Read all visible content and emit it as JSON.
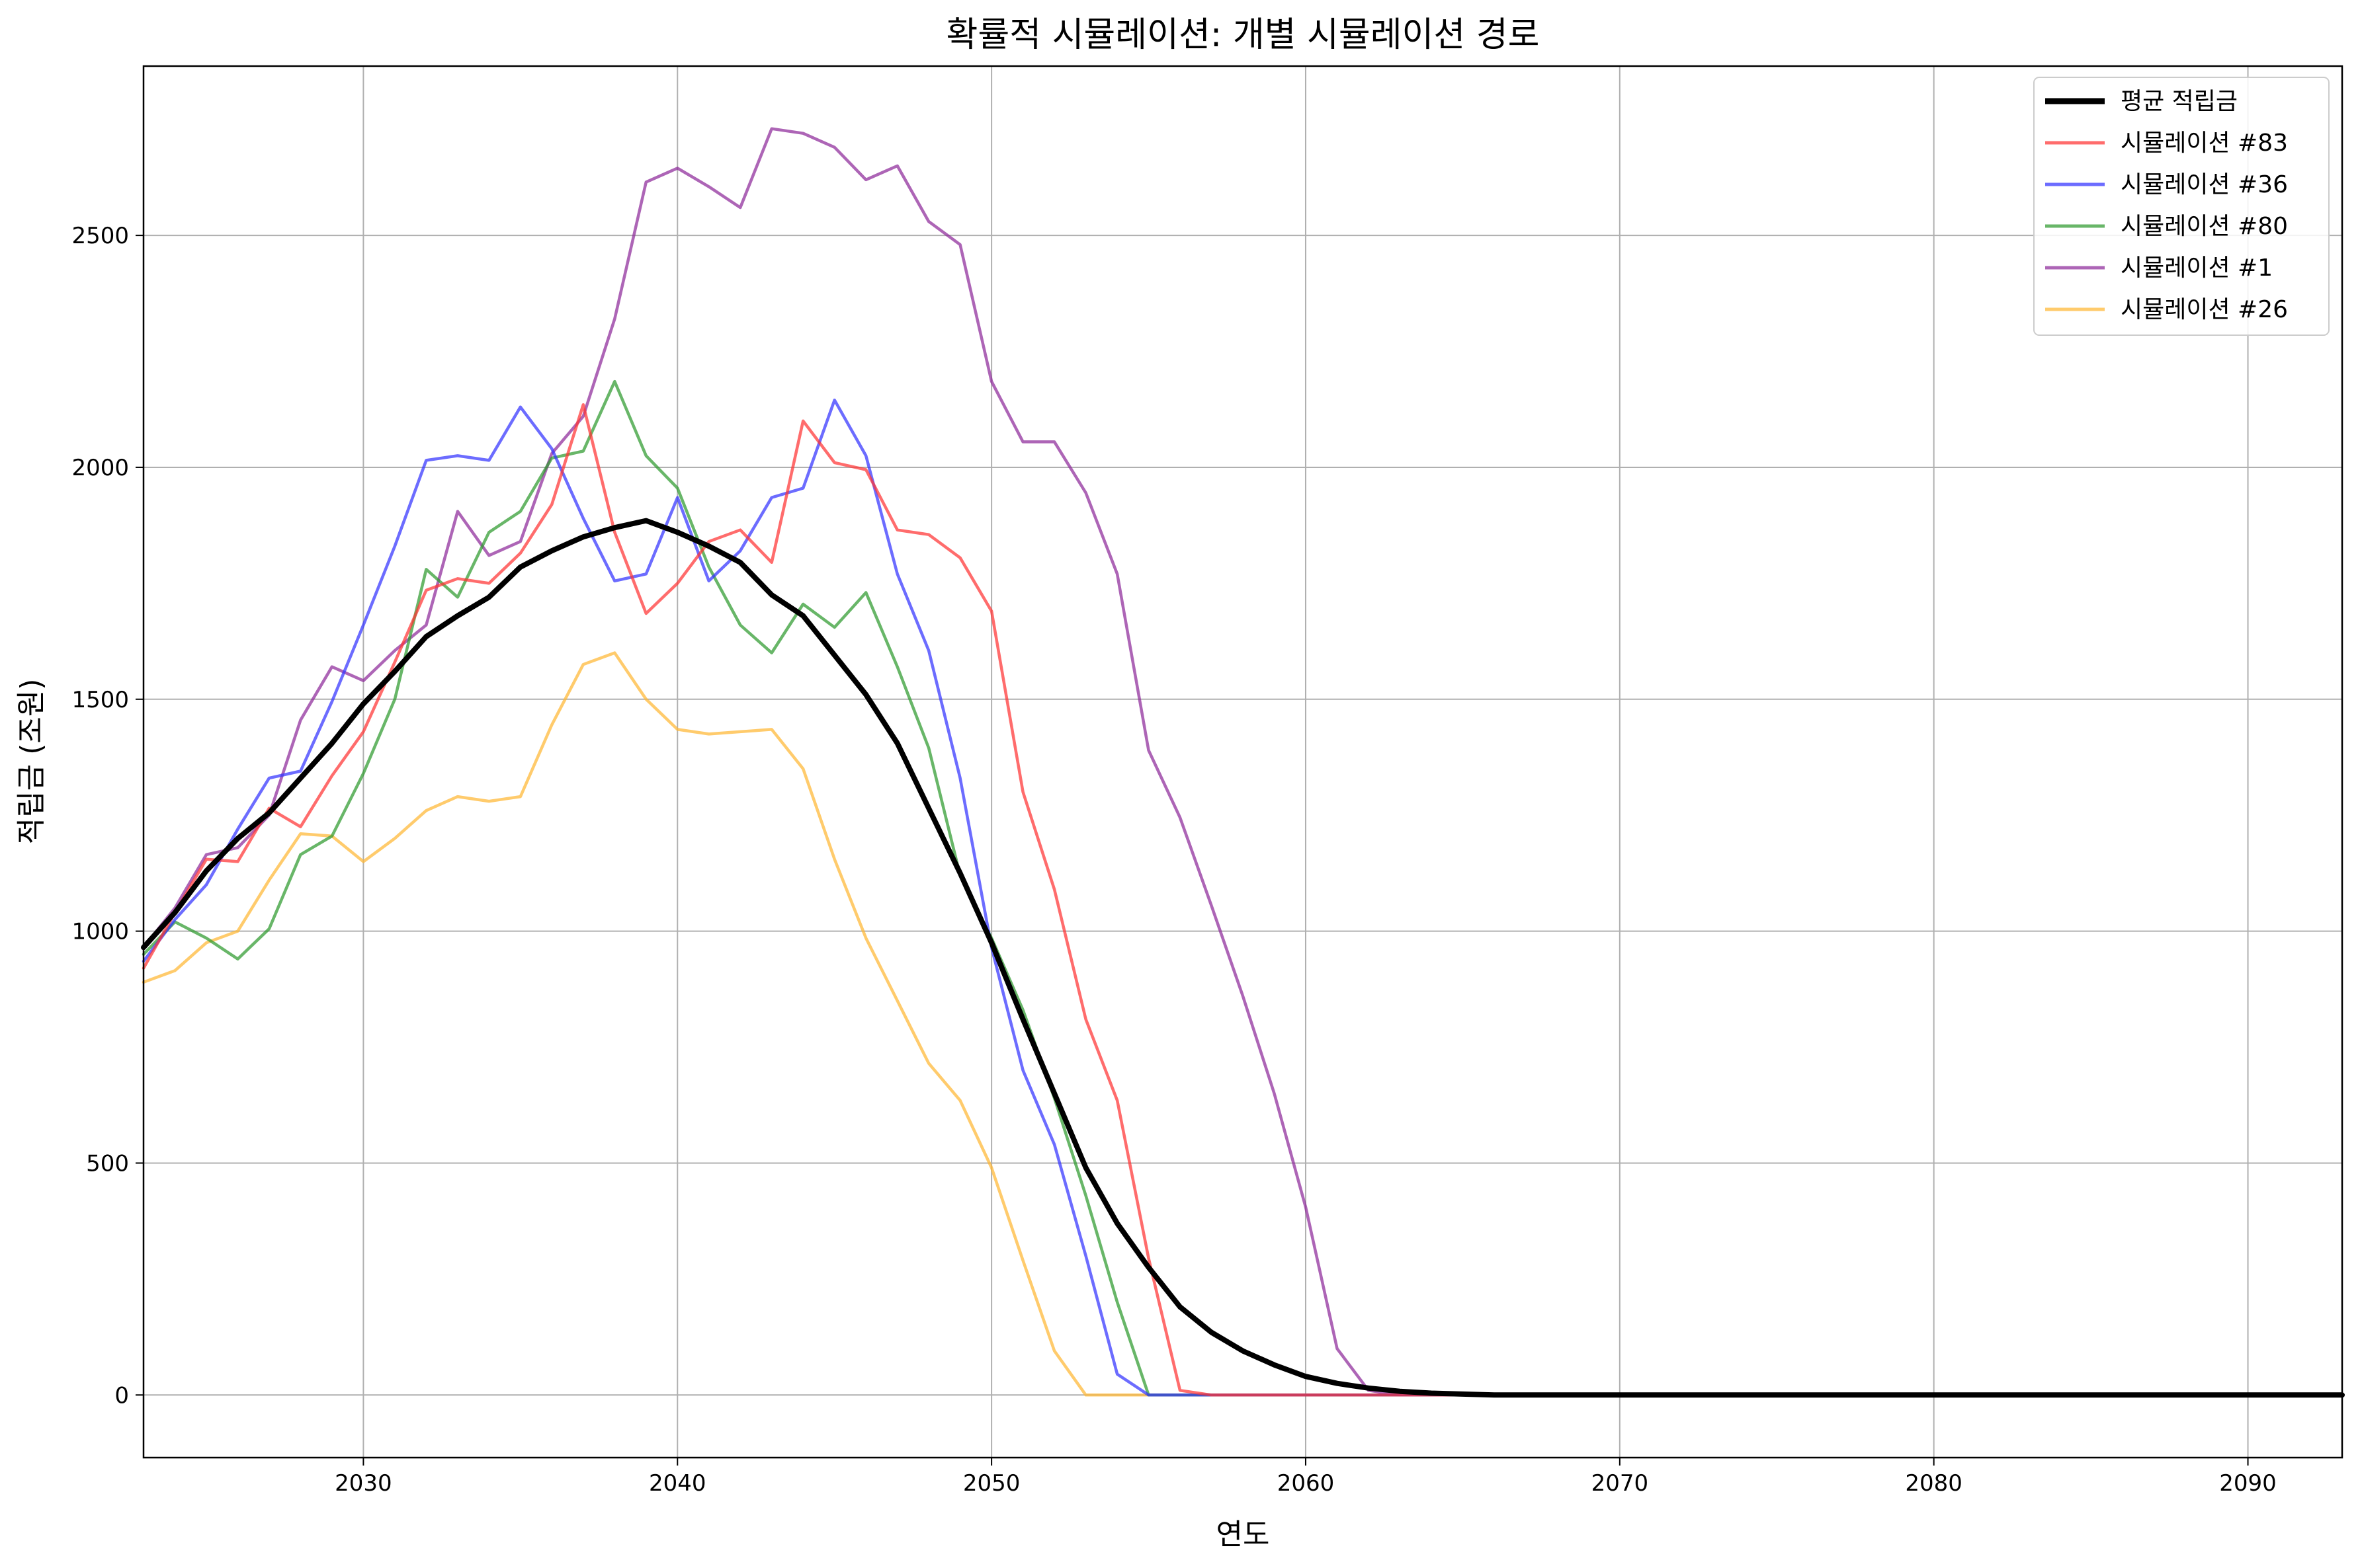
{
  "chart_data": {
    "type": "line",
    "title": "확률적 시뮬레이션: 개별 시뮬레이션 경로",
    "xlabel": "연도",
    "ylabel": "적립금 (조원)",
    "xlim": [
      2023,
      2093
    ],
    "ylim": [
      -135,
      2865
    ],
    "xticks": [
      2030,
      2040,
      2050,
      2060,
      2070,
      2080,
      2090
    ],
    "yticks": [
      0,
      500,
      1000,
      1500,
      2000,
      2500
    ],
    "grid": true,
    "legend_position": "top-right",
    "series": [
      {
        "name": "평균 적립금",
        "color": "#000000",
        "x": [
          2023,
          2024,
          2025,
          2026,
          2027,
          2028,
          2029,
          2030,
          2031,
          2032,
          2033,
          2034,
          2035,
          2036,
          2037,
          2038,
          2039,
          2040,
          2041,
          2042,
          2043,
          2044,
          2045,
          2046,
          2047,
          2048,
          2049,
          2050,
          2051,
          2052,
          2053,
          2054,
          2055,
          2056,
          2057,
          2058,
          2059,
          2060,
          2061,
          2062,
          2063,
          2064,
          2065,
          2066,
          2093
        ],
        "values": [
          965,
          1040,
          1130,
          1200,
          1255,
          1330,
          1405,
          1490,
          1560,
          1635,
          1680,
          1720,
          1785,
          1820,
          1850,
          1870,
          1885,
          1860,
          1830,
          1795,
          1725,
          1680,
          1595,
          1510,
          1405,
          1265,
          1125,
          975,
          810,
          650,
          490,
          370,
          275,
          190,
          135,
          95,
          65,
          40,
          25,
          15,
          8,
          4,
          2,
          0,
          0
        ]
      },
      {
        "name": "시뮬레이션 #83",
        "color": "#ff3333",
        "x": [
          2023,
          2024,
          2025,
          2026,
          2027,
          2028,
          2029,
          2030,
          2031,
          2032,
          2033,
          2034,
          2035,
          2036,
          2037,
          2038,
          2039,
          2040,
          2041,
          2042,
          2043,
          2044,
          2045,
          2046,
          2047,
          2048,
          2049,
          2050,
          2051,
          2052,
          2053,
          2054,
          2055,
          2056,
          2057,
          2093
        ],
        "values": [
          920,
          1040,
          1155,
          1150,
          1265,
          1225,
          1335,
          1430,
          1580,
          1735,
          1760,
          1750,
          1815,
          1920,
          2135,
          1860,
          1685,
          1750,
          1840,
          1865,
          1795,
          2100,
          2010,
          1995,
          1865,
          1855,
          1805,
          1690,
          1300,
          1090,
          810,
          635,
          295,
          10,
          0,
          0
        ]
      },
      {
        "name": "시뮬레이션 #36",
        "color": "#3333ff",
        "x": [
          2023,
          2024,
          2025,
          2026,
          2027,
          2028,
          2029,
          2030,
          2031,
          2032,
          2033,
          2034,
          2035,
          2036,
          2037,
          2038,
          2039,
          2040,
          2041,
          2042,
          2043,
          2044,
          2045,
          2046,
          2047,
          2048,
          2049,
          2050,
          2051,
          2052,
          2053,
          2054,
          2055,
          2093
        ],
        "values": [
          935,
          1025,
          1100,
          1220,
          1330,
          1345,
          1495,
          1660,
          1830,
          2015,
          2025,
          2015,
          2130,
          2040,
          1890,
          1755,
          1770,
          1935,
          1755,
          1820,
          1935,
          1955,
          2145,
          2025,
          1770,
          1605,
          1330,
          965,
          700,
          540,
          300,
          45,
          0,
          0
        ]
      },
      {
        "name": "시뮬레이션 #80",
        "color": "#2e9a2e",
        "x": [
          2023,
          2024,
          2025,
          2026,
          2027,
          2028,
          2029,
          2030,
          2031,
          2032,
          2033,
          2034,
          2035,
          2036,
          2037,
          2038,
          2039,
          2040,
          2041,
          2042,
          2043,
          2044,
          2045,
          2046,
          2047,
          2048,
          2049,
          2050,
          2051,
          2052,
          2053,
          2054,
          2055,
          2093
        ],
        "values": [
          950,
          1020,
          985,
          940,
          1005,
          1165,
          1205,
          1340,
          1500,
          1780,
          1720,
          1860,
          1905,
          2020,
          2035,
          2185,
          2025,
          1955,
          1785,
          1660,
          1600,
          1705,
          1655,
          1730,
          1570,
          1395,
          1120,
          985,
          830,
          640,
          430,
          200,
          0,
          0
        ]
      },
      {
        "name": "시뮬레이션 #1",
        "color": "#8e2a9a",
        "x": [
          2023,
          2024,
          2025,
          2026,
          2027,
          2028,
          2029,
          2030,
          2031,
          2032,
          2033,
          2034,
          2035,
          2036,
          2037,
          2038,
          2039,
          2040,
          2041,
          2042,
          2043,
          2044,
          2045,
          2046,
          2047,
          2048,
          2049,
          2050,
          2051,
          2052,
          2053,
          2054,
          2055,
          2056,
          2057,
          2058,
          2059,
          2060,
          2061,
          2062,
          2063,
          2093
        ],
        "values": [
          965,
          1050,
          1165,
          1180,
          1250,
          1455,
          1570,
          1540,
          1605,
          1660,
          1905,
          1810,
          1840,
          2030,
          2110,
          2320,
          2615,
          2645,
          2605,
          2560,
          2730,
          2720,
          2690,
          2620,
          2650,
          2530,
          2480,
          2185,
          2055,
          2055,
          1945,
          1770,
          1390,
          1245,
          1055,
          860,
          650,
          405,
          100,
          10,
          0,
          0
        ]
      },
      {
        "name": "시뮬레이션 #26",
        "color": "#ffb733",
        "x": [
          2023,
          2024,
          2025,
          2026,
          2027,
          2028,
          2029,
          2030,
          2031,
          2032,
          2033,
          2034,
          2035,
          2036,
          2037,
          2038,
          2039,
          2040,
          2041,
          2042,
          2043,
          2044,
          2045,
          2046,
          2047,
          2048,
          2049,
          2050,
          2051,
          2052,
          2053,
          2093
        ],
        "values": [
          890,
          915,
          975,
          1000,
          1110,
          1210,
          1205,
          1150,
          1200,
          1260,
          1290,
          1280,
          1290,
          1445,
          1575,
          1600,
          1500,
          1435,
          1425,
          1430,
          1435,
          1350,
          1155,
          985,
          850,
          715,
          635,
          490,
          290,
          95,
          0,
          0
        ]
      }
    ]
  }
}
